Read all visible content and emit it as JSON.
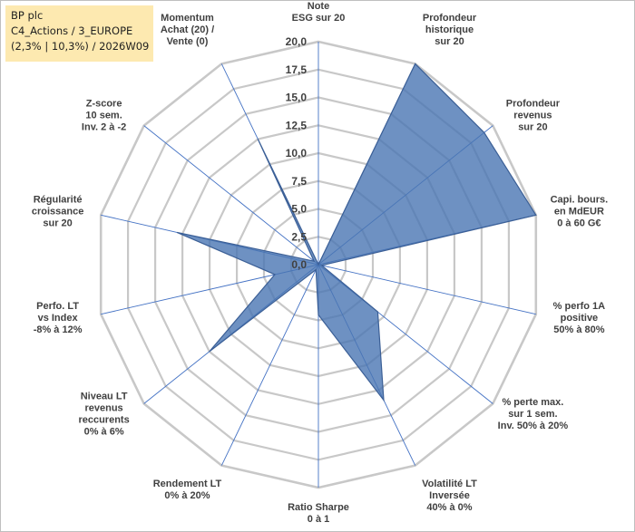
{
  "info": {
    "company": "BP plc",
    "group": "C4_Actions / 3_EUROPE",
    "stats": "(2,3% | 10,3%) / 2026W09"
  },
  "colors": {
    "fill": "#4a76b3",
    "stroke": "#3b5f96",
    "grid": "#c8c8c8",
    "spoke": "#4472c4",
    "info_bg": "#fde9b0"
  },
  "chart_data": {
    "type": "radar",
    "rmin": 0,
    "rmax": 20,
    "rstep": 2.5,
    "tick_labels": [
      "0,0",
      "2,5",
      "5,0",
      "7,5",
      "10,0",
      "12,5",
      "15,0",
      "17,5",
      "20,0"
    ],
    "axes": [
      {
        "label": [
          "Note",
          "ESG sur 20"
        ],
        "value": 0
      },
      {
        "label": [
          "Profondeur",
          "historique",
          "sur 20"
        ],
        "value": 20
      },
      {
        "label": [
          "Profondeur",
          "revenus",
          "sur 20"
        ],
        "value": 19
      },
      {
        "label": [
          "Capi. bours.",
          "en MdEUR",
          "0 à 60 G€"
        ],
        "value": 20
      },
      {
        "label": [
          "% perfo 1A",
          "positive",
          "50% à 80%"
        ],
        "value": 0.3
      },
      {
        "label": [
          "% perte max.",
          "sur 1 sem.",
          "Inv. 50% à 20%"
        ],
        "value": 6.8
      },
      {
        "label": [
          "Volatilité LT",
          "Inversée",
          "40% à 0%"
        ],
        "value": 13.5
      },
      {
        "label": [
          "Ratio Sharpe",
          "0 à 1"
        ],
        "value": 4.5
      },
      {
        "label": [
          "Rendement LT",
          "0% à 20%"
        ],
        "value": 0.5
      },
      {
        "label": [
          "Niveau LT",
          "revenus",
          "reccurents",
          "0% à 6%"
        ],
        "value": 12.5
      },
      {
        "label": [
          "Perfo. LT",
          "vs Index",
          "-8% à 12%"
        ],
        "value": 4
      },
      {
        "label": [
          "Régularité",
          "croissance",
          "sur 20"
        ],
        "value": 13
      },
      {
        "label": [
          "Z-score",
          "10 sem.",
          "Inv. 2 à -2"
        ],
        "value": 0.5
      },
      {
        "label": [
          "Momentum",
          "Achat (20) /",
          "Vente (0)"
        ],
        "value": 12.5
      }
    ]
  }
}
